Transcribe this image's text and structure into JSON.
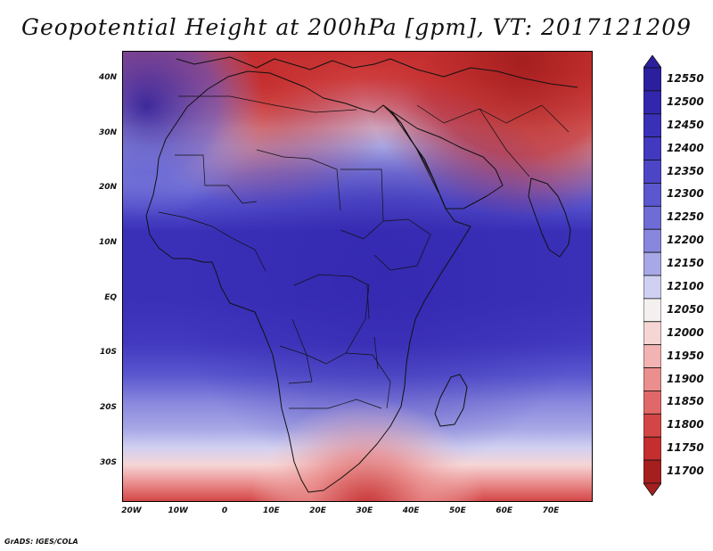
{
  "title": "Geopotential Height at 200hPa [gpm], VT: 2017121209",
  "footer": "GrADS: IGES/COLA",
  "map": {
    "lat_labels": [
      "40N",
      "30N",
      "20N",
      "10N",
      "EQ",
      "10S",
      "20S",
      "30S"
    ],
    "lon_labels": [
      "20W",
      "10W",
      "0",
      "10E",
      "20E",
      "30E",
      "40E",
      "50E",
      "60E",
      "70E"
    ],
    "lon_range": [
      -22,
      79
    ],
    "lat_range": [
      -37,
      45
    ],
    "lat_ticks": [
      40,
      30,
      20,
      10,
      0,
      -10,
      -20,
      -30
    ],
    "lon_ticks": [
      -20,
      -10,
      0,
      10,
      20,
      30,
      40,
      50,
      60,
      70
    ]
  },
  "colorbar": {
    "levels": [
      "12550",
      "12500",
      "12450",
      "12400",
      "12350",
      "12300",
      "12250",
      "12200",
      "12150",
      "12100",
      "12050",
      "12000",
      "11950",
      "11900",
      "11850",
      "11800",
      "11750",
      "11700"
    ],
    "colors": [
      "#2b1f9e",
      "#3226ad",
      "#3a30b8",
      "#4239c0",
      "#4c46c7",
      "#5a57cf",
      "#6e6cd6",
      "#8887dd",
      "#a8a8e6",
      "#d0d0f2",
      "#f5f0f0",
      "#f6d5d5",
      "#f2b3b3",
      "#ea8e8e",
      "#e06868",
      "#d44646",
      "#c42e2e",
      "#a51f1f"
    ]
  },
  "chart_data": {
    "type": "heatmap",
    "title": "Geopotential Height at 200hPa [gpm], VT: 2017121209",
    "variable": "Geopotential Height",
    "level": "200hPa",
    "units": "gpm",
    "valid_time": "2017121209",
    "region_lon": [
      -22,
      79
    ],
    "region_lat": [
      -37,
      45
    ],
    "contour_levels": [
      11700,
      11750,
      11800,
      11850,
      11900,
      11950,
      12000,
      12050,
      12100,
      12150,
      12200,
      12250,
      12300,
      12350,
      12400,
      12450,
      12500,
      12550
    ],
    "zonal_profile": [
      {
        "lat": 42,
        "value": 11700
      },
      {
        "lat": 35,
        "value": 11850
      },
      {
        "lat": 30,
        "value": 12050
      },
      {
        "lat": 25,
        "value": 12200
      },
      {
        "lat": 20,
        "value": 12300
      },
      {
        "lat": 15,
        "value": 12380
      },
      {
        "lat": 10,
        "value": 12430
      },
      {
        "lat": 0,
        "value": 12460
      },
      {
        "lat": -10,
        "value": 12450
      },
      {
        "lat": -18,
        "value": 12370
      },
      {
        "lat": -25,
        "value": 12250
      },
      {
        "lat": -30,
        "value": 12150
      },
      {
        "lat": -35,
        "value": 11950
      }
    ]
  }
}
